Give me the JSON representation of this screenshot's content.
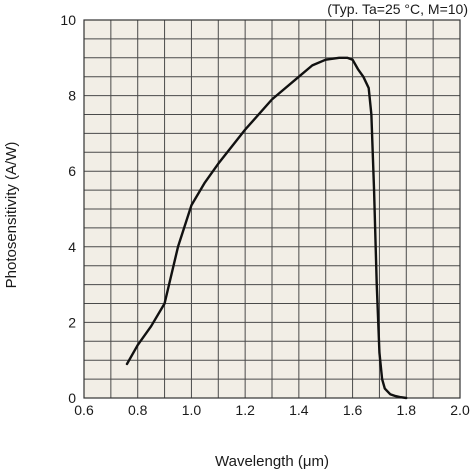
{
  "chart_data": {
    "type": "line",
    "title": "",
    "annotation": "(Typ. Ta=25 °C, M=10)",
    "xlabel": "Wavelength (μm)",
    "ylabel": "Photosensitivity (A/W)",
    "xlim": [
      0.6,
      2.0
    ],
    "ylim": [
      0,
      10
    ],
    "x_ticks": [
      "0.6",
      "0.8",
      "1.0",
      "1.2",
      "1.4",
      "1.6",
      "1.8",
      "2.0"
    ],
    "y_ticks": [
      "0",
      "2",
      "4",
      "6",
      "8",
      "10"
    ],
    "grid": true,
    "background_color": "#f2eee6",
    "line_color": "#111111",
    "series": [
      {
        "x": [
          0.76,
          0.8,
          0.85,
          0.9,
          0.95,
          1.0,
          1.05,
          1.1,
          1.2,
          1.3,
          1.4,
          1.45,
          1.5,
          1.55,
          1.58,
          1.6,
          1.62,
          1.64,
          1.66,
          1.67,
          1.68,
          1.69,
          1.7,
          1.71,
          1.72,
          1.74,
          1.76,
          1.78,
          1.8
        ],
        "y": [
          0.9,
          1.4,
          1.9,
          2.5,
          4.0,
          5.1,
          5.7,
          6.2,
          7.1,
          7.9,
          8.5,
          8.8,
          8.95,
          9.0,
          9.0,
          8.95,
          8.7,
          8.5,
          8.2,
          7.5,
          5.5,
          3.0,
          1.2,
          0.5,
          0.25,
          0.1,
          0.05,
          0.02,
          0.0
        ]
      }
    ]
  }
}
